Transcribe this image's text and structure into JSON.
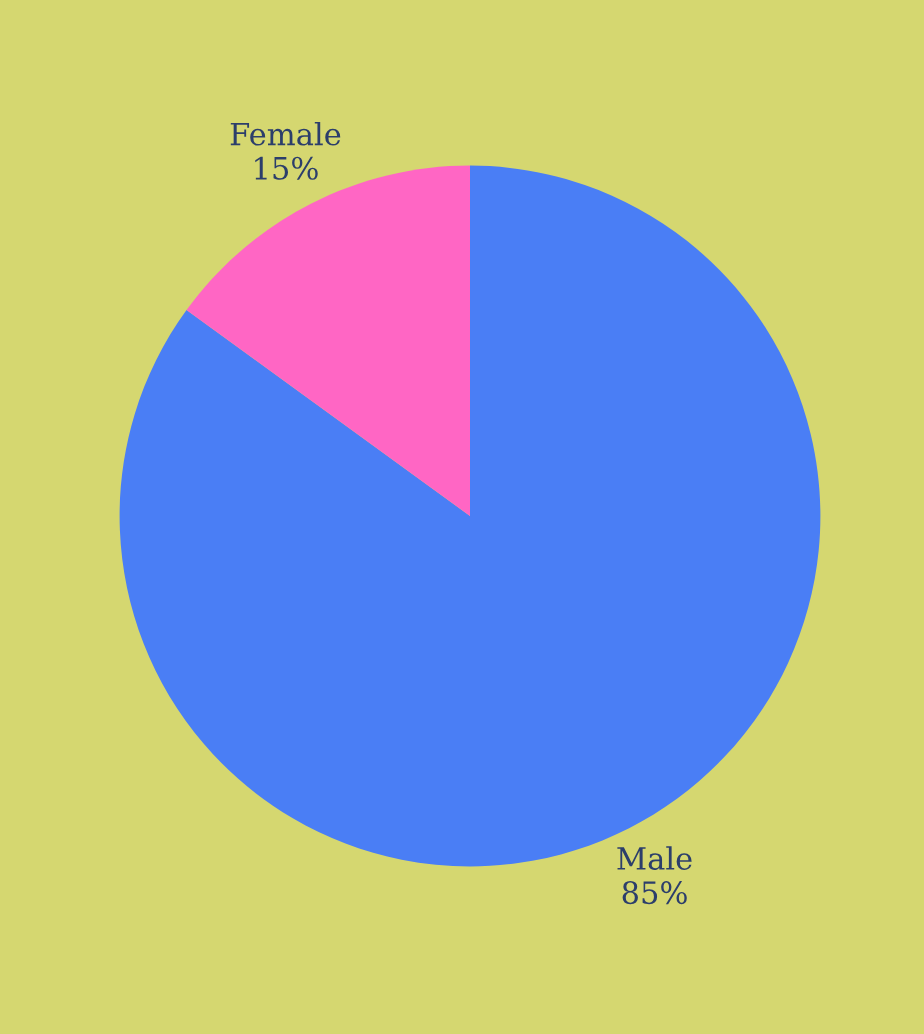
{
  "chart_data": {
    "type": "pie",
    "categories": [
      "Male",
      "Female"
    ],
    "values": [
      85,
      15
    ],
    "colors": [
      "#4a7ef5",
      "#ff66c4"
    ],
    "value_labels": [
      "85%",
      "15%"
    ]
  }
}
